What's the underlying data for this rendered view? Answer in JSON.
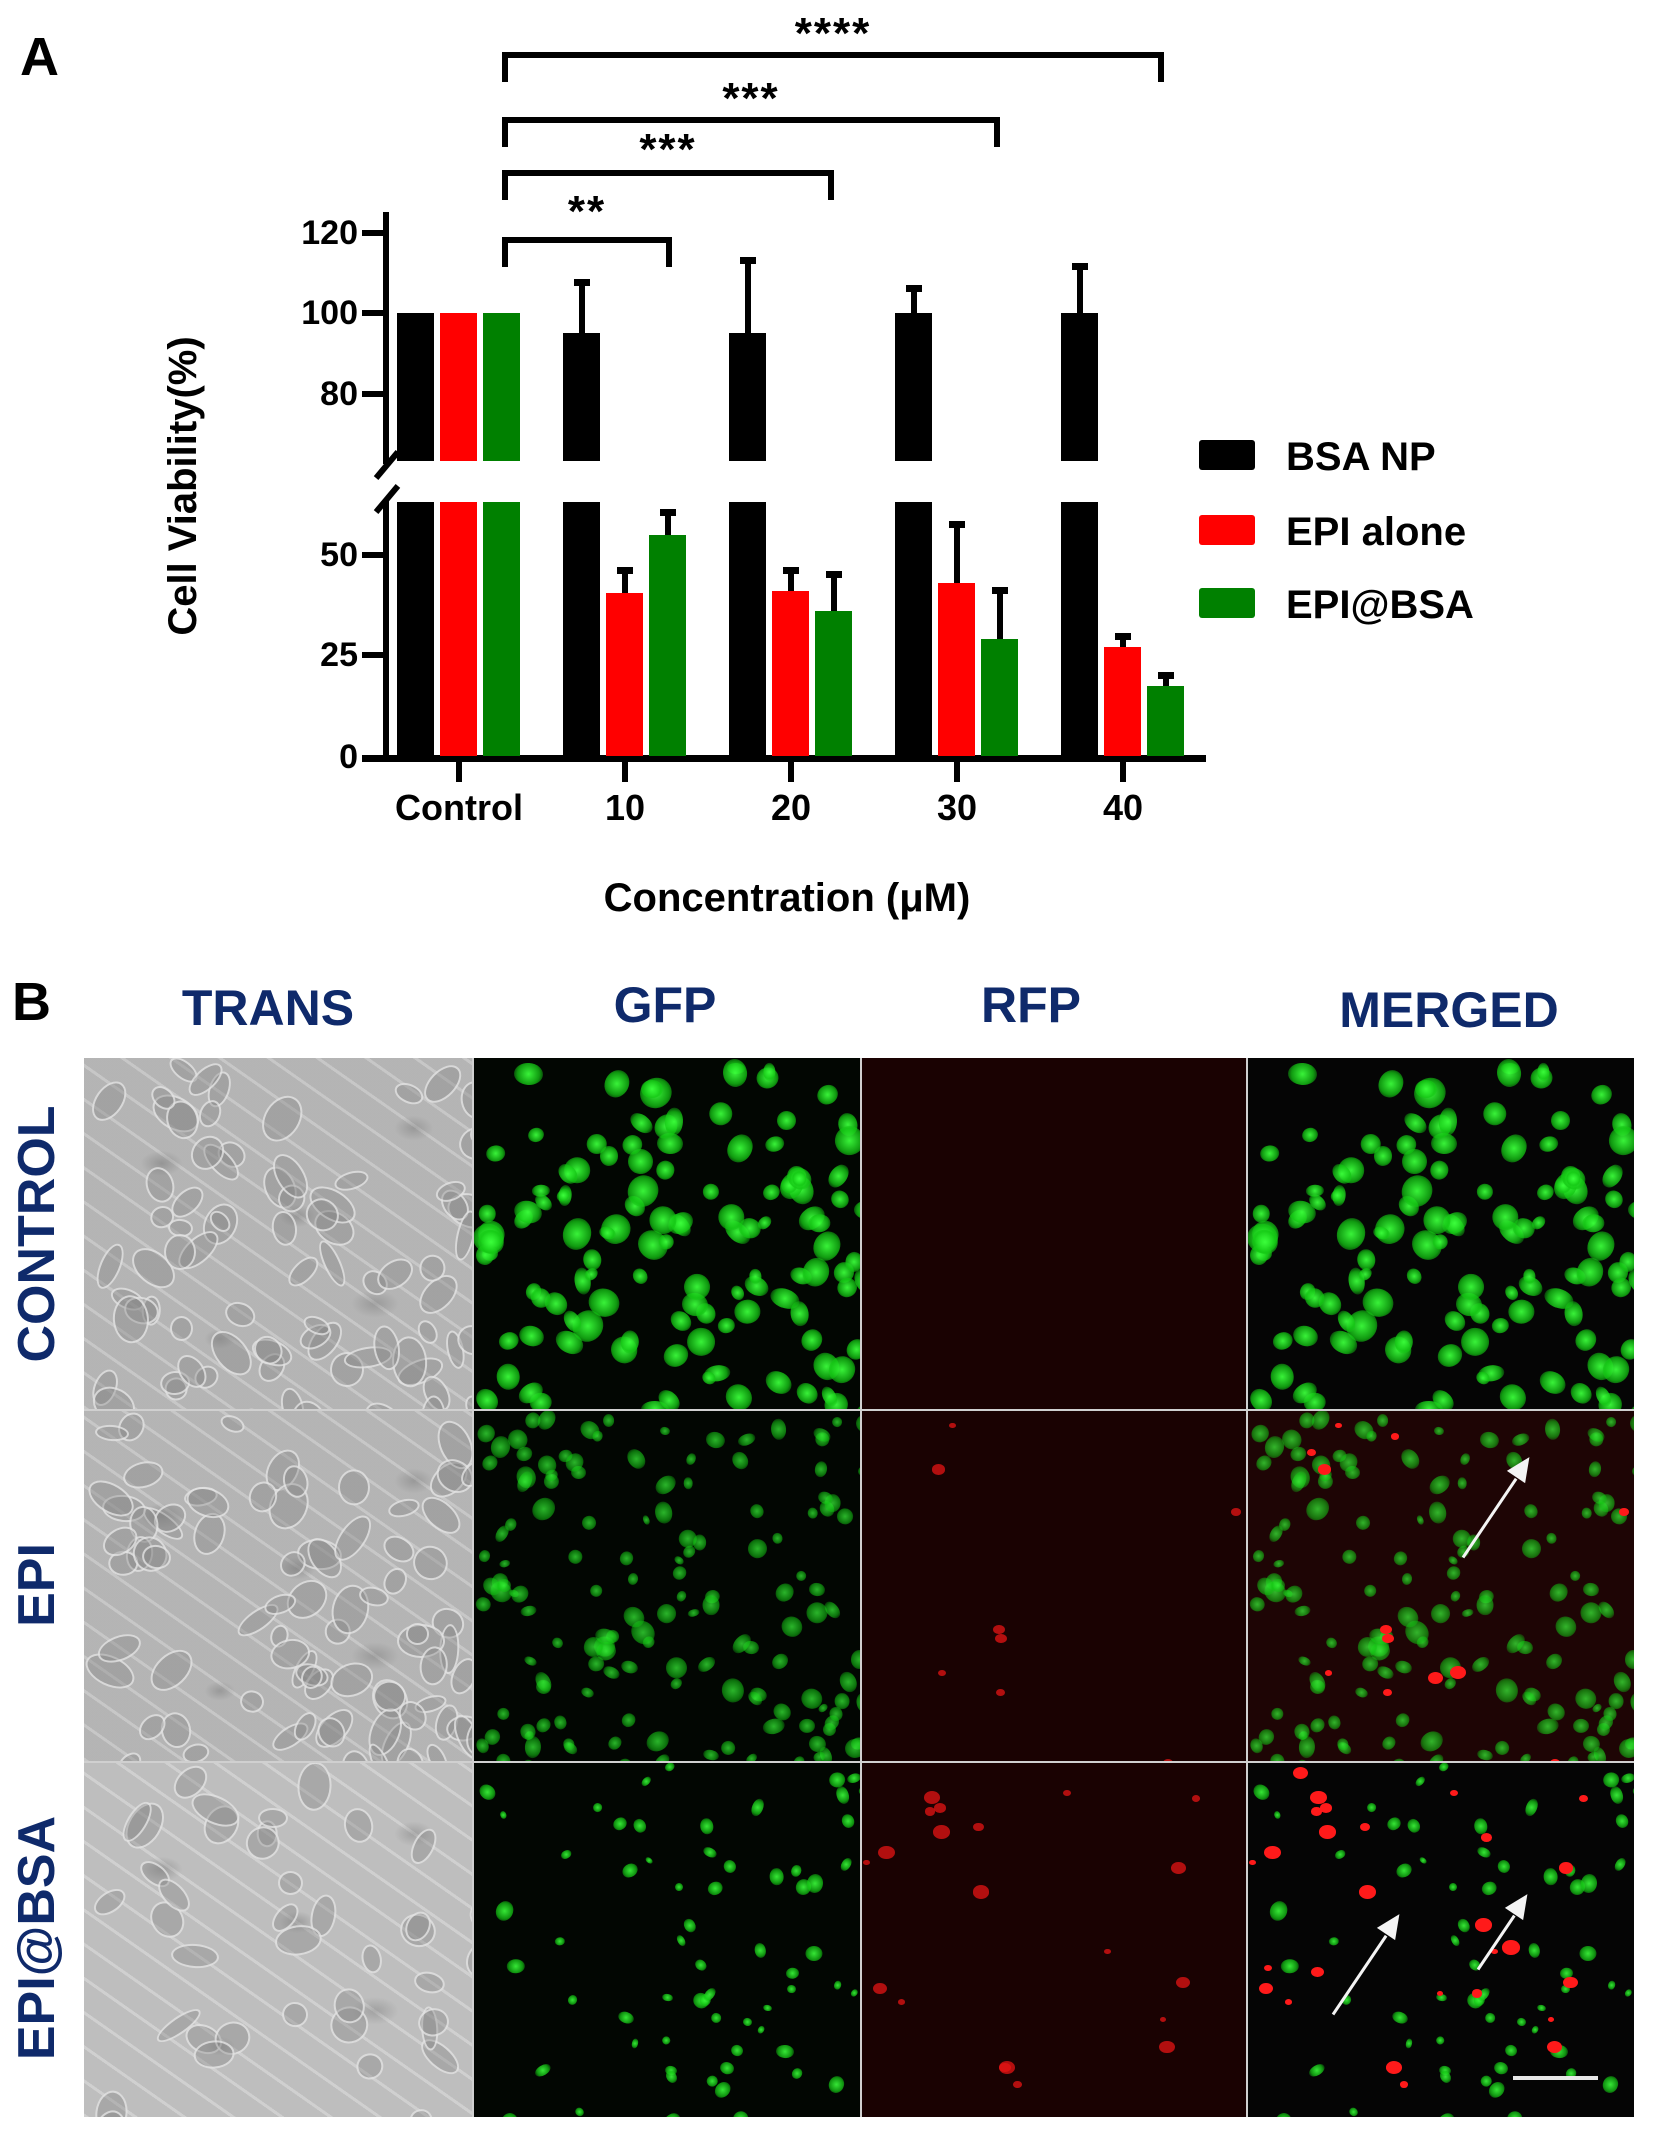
{
  "panel_a": {
    "letter": "A",
    "ylabel": "Cell Viability(%)",
    "xlabel": "Concentration (μM)",
    "y_ticks_upper": [
      "120",
      "100",
      "80"
    ],
    "y_ticks_lower": [
      "50",
      "25",
      "0"
    ],
    "x_ticks": [
      "Control",
      "10",
      "20",
      "30",
      "40"
    ],
    "legend": [
      {
        "label": "BSA NP",
        "color": "#000000"
      },
      {
        "label": "EPI alone",
        "color": "#ff0000"
      },
      {
        "label": "EPI@BSA",
        "color": "#008000"
      }
    ],
    "significance": [
      {
        "stars": "**",
        "from": "Control",
        "to": "10"
      },
      {
        "stars": "***",
        "from": "Control",
        "to": "20"
      },
      {
        "stars": "***",
        "from": "Control",
        "to": "30"
      },
      {
        "stars": "****",
        "from": "Control",
        "to": "40"
      }
    ]
  },
  "panel_b": {
    "letter": "B",
    "columns": [
      "TRANS",
      "GFP",
      "RFP",
      "MERGED"
    ],
    "rows": [
      "CONTROL",
      "EPI",
      "EPI@BSA"
    ],
    "label_color": "#0f2a6b"
  },
  "chart_data": {
    "type": "bar",
    "title": "",
    "xlabel": "Concentration (μM)",
    "ylabel": "Cell Viability(%)",
    "categories": [
      "Control",
      "10",
      "20",
      "30",
      "40"
    ],
    "series": [
      {
        "name": "BSA NP",
        "color": "#000000",
        "values": [
          100,
          95,
          95,
          100,
          100
        ],
        "error_upper": [
          100,
          108.5,
          114,
          107,
          112.5
        ]
      },
      {
        "name": "EPI alone",
        "color": "#ff0000",
        "values": [
          100,
          40.5,
          41,
          43,
          27
        ],
        "error_upper": [
          100,
          47,
          47,
          58.5,
          30.5
        ]
      },
      {
        "name": "EPI@BSA",
        "color": "#008000",
        "values": [
          100,
          55,
          36,
          29,
          17.5
        ],
        "error_upper": [
          100,
          61.5,
          46,
          42,
          21
        ]
      }
    ],
    "y_axis": {
      "broken": true,
      "lower_range": [
        0,
        63
      ],
      "upper_range": [
        63,
        125
      ],
      "ticks": [
        0,
        25,
        50,
        80,
        100,
        120
      ]
    },
    "ylim": [
      0,
      125
    ],
    "grid": false,
    "legend_position": "right",
    "annotations": [
      {
        "text": "**",
        "compare": [
          "Control",
          "10"
        ]
      },
      {
        "text": "***",
        "compare": [
          "Control",
          "20"
        ]
      },
      {
        "text": "***",
        "compare": [
          "Control",
          "30"
        ]
      },
      {
        "text": "****",
        "compare": [
          "Control",
          "40"
        ]
      }
    ]
  }
}
